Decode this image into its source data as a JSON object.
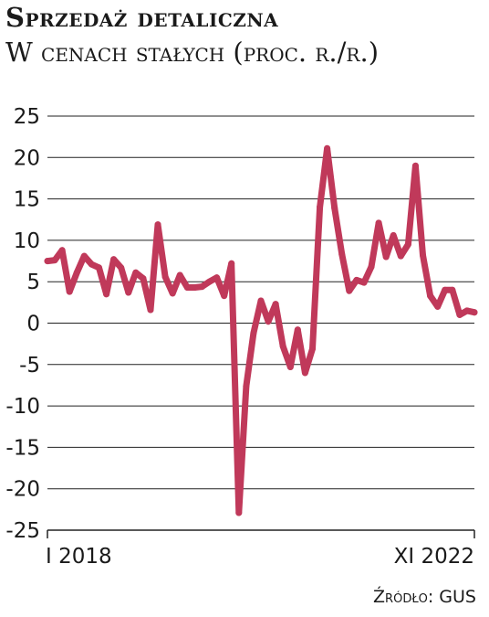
{
  "chart_data": {
    "type": "line",
    "title": "Sprzedaż detaliczna",
    "subtitle": "W cenach stałych (proc. r./r.)",
    "source": "Źródło: GUS",
    "xlabel": "",
    "ylabel": "",
    "ylim": [
      -25,
      25
    ],
    "yticks": [
      25,
      20,
      15,
      10,
      5,
      0,
      -5,
      -10,
      -15,
      -20,
      -25
    ],
    "ytick_labels": [
      "25",
      "20",
      "15",
      "10",
      "5",
      "0",
      "-5",
      "-10",
      "-15",
      "-20",
      "-25"
    ],
    "x_start_label": "I 2018",
    "x_end_label": "XI 2022",
    "grid": true,
    "line_color": "#c0395a",
    "series": [
      {
        "values": [
          7.5,
          7.6,
          8.8,
          3.8,
          6.1,
          8.1,
          7.1,
          6.7,
          3.5,
          7.7,
          6.7,
          3.7,
          6.1,
          5.4,
          1.6,
          11.9,
          5.6,
          3.6,
          5.8,
          4.3,
          4.3,
          4.4,
          5.0,
          5.5,
          3.3,
          7.2,
          -22.9,
          -7.6,
          -1.2,
          2.7,
          0.2,
          2.3,
          -2.8,
          -5.3,
          -0.8,
          -6.0,
          -3.1,
          14.0,
          21.1,
          13.9,
          8.3,
          3.9,
          5.2,
          4.9,
          6.8,
          12.1,
          8.0,
          10.6,
          8.1,
          9.5,
          19.0,
          8.2,
          3.3,
          2.0,
          4.0,
          4.0,
          1.0,
          1.5,
          1.3
        ]
      }
    ]
  }
}
